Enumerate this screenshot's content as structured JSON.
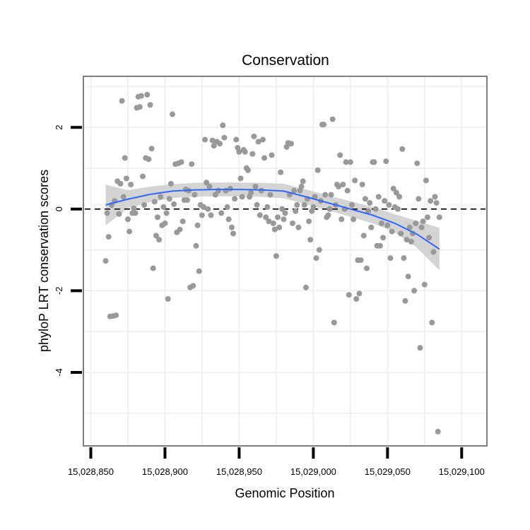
{
  "chart_data": {
    "type": "scatter",
    "title": "Conservation",
    "xlabel": "Genomic Position",
    "ylabel": "phyloP LRT conservation scores",
    "xlim": [
      15028845,
      15029117
    ],
    "ylim": [
      -5.8,
      3.25
    ],
    "x_ticks": [
      15028850,
      15028900,
      15028950,
      15029000,
      15029050,
      15029100
    ],
    "x_tick_labels": [
      "15,028,850",
      "15,028,900",
      "15,028,950",
      "15,029,000",
      "15,029,050",
      "15,029,100"
    ],
    "y_ticks": [
      2,
      0,
      -2,
      -4
    ],
    "y_tick_labels": [
      "2",
      "0",
      "-2",
      "-4"
    ],
    "reference_line": {
      "y": 0,
      "style": "dashed"
    },
    "grid": true,
    "colors": {
      "points": "#999999",
      "smooth_line": "#3366FF",
      "confidence_band": "#cccccc",
      "panel_border": "#7f7f7f",
      "grid": "#f0f0f0"
    },
    "series": [
      {
        "name": "observed scores",
        "points": [
          [
            15028860,
            -1.27
          ],
          [
            15028861,
            -0.1
          ],
          [
            15028862,
            -0.68
          ],
          [
            15028863,
            -2.63
          ],
          [
            15028864,
            0.1
          ],
          [
            15028865,
            -2.62
          ],
          [
            15028866,
            0.2
          ],
          [
            15028867,
            -2.6
          ],
          [
            15028868,
            0.68
          ],
          [
            15028869,
            -0.12
          ],
          [
            15028870,
            0.62
          ],
          [
            15028871,
            2.65
          ],
          [
            15028872,
            0.3
          ],
          [
            15028873,
            1.25
          ],
          [
            15028874,
            0.75
          ],
          [
            15028875,
            -0.25
          ],
          [
            15028876,
            -0.55
          ],
          [
            15028877,
            0.6
          ],
          [
            15028878,
            -0.1
          ],
          [
            15028879,
            0.02
          ],
          [
            15028880,
            -0.1
          ],
          [
            15028881,
            2.48
          ],
          [
            15028882,
            2.75
          ],
          [
            15028883,
            2.5
          ],
          [
            15028884,
            2.77
          ],
          [
            15028885,
            0.8
          ],
          [
            15028886,
            0.1
          ],
          [
            15028887,
            1.25
          ],
          [
            15028888,
            2.8
          ],
          [
            15028889,
            1.22
          ],
          [
            15028890,
            2.55
          ],
          [
            15028891,
            1.48
          ],
          [
            15028892,
            -1.45
          ],
          [
            15028893,
            0.18
          ],
          [
            15028894,
            -0.65
          ],
          [
            15028895,
            -0.2
          ],
          [
            15028896,
            -0.75
          ],
          [
            15028897,
            0.3
          ],
          [
            15028898,
            -0.4
          ],
          [
            15028899,
            0.05
          ],
          [
            15028900,
            -0.35
          ],
          [
            15028901,
            -0.1
          ],
          [
            15028902,
            -2.2
          ],
          [
            15028903,
            0.25
          ],
          [
            15028904,
            0.62
          ],
          [
            15028905,
            2.32
          ],
          [
            15028906,
            0.12
          ],
          [
            15028907,
            1.1
          ],
          [
            15028908,
            -0.57
          ],
          [
            15028909,
            1.12
          ],
          [
            15028910,
            -0.5
          ],
          [
            15028911,
            1.15
          ],
          [
            15028912,
            -0.3
          ],
          [
            15028913,
            0.22
          ],
          [
            15028914,
            0.48
          ],
          [
            15028915,
            0.22
          ],
          [
            15028916,
            0.45
          ],
          [
            15028917,
            -1.92
          ],
          [
            15028918,
            1.1
          ],
          [
            15028919,
            -1.88
          ],
          [
            15028920,
            0.35
          ],
          [
            15028921,
            -0.9
          ],
          [
            15028922,
            -0.4
          ],
          [
            15028923,
            -1.52
          ],
          [
            15028924,
            0.1
          ],
          [
            15028925,
            -0.15
          ],
          [
            15028926,
            0.05
          ],
          [
            15028927,
            1.7
          ],
          [
            15028928,
            0.65
          ],
          [
            15028929,
            0.0
          ],
          [
            15028930,
            0.55
          ],
          [
            15028931,
            -0.15
          ],
          [
            15028932,
            1.68
          ],
          [
            15028933,
            1.55
          ],
          [
            15028934,
            0.35
          ],
          [
            15028935,
            1.65
          ],
          [
            15028936,
            0.45
          ],
          [
            15028937,
            1.6
          ],
          [
            15028938,
            -0.1
          ],
          [
            15028939,
            2.05
          ],
          [
            15028940,
            1.75
          ],
          [
            15028941,
            0.45
          ],
          [
            15028942,
            0.05
          ],
          [
            15028943,
            -0.25
          ],
          [
            15028944,
            0.5
          ],
          [
            15028945,
            -0.45
          ],
          [
            15028946,
            -0.6
          ],
          [
            15028947,
            0.25
          ],
          [
            15028948,
            1.7
          ],
          [
            15028949,
            1.5
          ],
          [
            15028950,
            1.4
          ],
          [
            15028951,
            0.75
          ],
          [
            15028952,
            0.3
          ],
          [
            15028953,
            1.45
          ],
          [
            15028954,
            1.4
          ],
          [
            15028955,
            1.0
          ],
          [
            15028956,
            0.95
          ],
          [
            15028957,
            0.3
          ],
          [
            15028958,
            0.4
          ],
          [
            15028959,
            1.35
          ],
          [
            15028960,
            1.78
          ],
          [
            15028961,
            0.55
          ],
          [
            15028962,
            0.1
          ],
          [
            15028963,
            1.65
          ],
          [
            15028964,
            -0.15
          ],
          [
            15028965,
            0.45
          ],
          [
            15028966,
            1.7
          ],
          [
            15028967,
            1.25
          ],
          [
            15028968,
            -0.2
          ],
          [
            15028969,
            0.05
          ],
          [
            15028970,
            -0.3
          ],
          [
            15028971,
            0.35
          ],
          [
            15028972,
            1.32
          ],
          [
            15028973,
            -0.35
          ],
          [
            15028974,
            -0.5
          ],
          [
            15028975,
            -1.15
          ],
          [
            15028976,
            -0.2
          ],
          [
            15028977,
            -0.45
          ],
          [
            15028978,
            0.9
          ],
          [
            15028979,
            0.0
          ],
          [
            15028980,
            -0.25
          ],
          [
            15028981,
            -0.1
          ],
          [
            15028982,
            1.52
          ],
          [
            15028983,
            1.62
          ],
          [
            15028984,
            0.35
          ],
          [
            15028985,
            1.6
          ],
          [
            15028986,
            -0.35
          ],
          [
            15028987,
            0.45
          ],
          [
            15028988,
            -0.05
          ],
          [
            15028989,
            0.1
          ],
          [
            15028990,
            -0.45
          ],
          [
            15028991,
            0.45
          ],
          [
            15028992,
            0.55
          ],
          [
            15028993,
            0.68
          ],
          [
            15028994,
            0.1
          ],
          [
            15028995,
            -1.92
          ],
          [
            15028996,
            0.25
          ],
          [
            15028997,
            -0.3
          ],
          [
            15028998,
            -0.75
          ],
          [
            15028999,
            -0.05
          ],
          [
            15029000,
            0.05
          ],
          [
            15029001,
            0.3
          ],
          [
            15029002,
            -1.2
          ],
          [
            15029003,
            0.95
          ],
          [
            15029004,
            -1.0
          ],
          [
            15029005,
            0.2
          ],
          [
            15029006,
            2.07
          ],
          [
            15029007,
            2.07
          ],
          [
            15029008,
            0.35
          ],
          [
            15029009,
            -0.2
          ],
          [
            15029010,
            -0.15
          ],
          [
            15029011,
            0.0
          ],
          [
            15029012,
            0.35
          ],
          [
            15029013,
            2.2
          ],
          [
            15029014,
            -2.78
          ],
          [
            15029015,
            0.1
          ],
          [
            15029016,
            0.6
          ],
          [
            15029017,
            0.55
          ],
          [
            15029018,
            1.32
          ],
          [
            15029019,
            -0.25
          ],
          [
            15029020,
            0.6
          ],
          [
            15029021,
            0.0
          ],
          [
            15029022,
            1.15
          ],
          [
            15029023,
            0.45
          ],
          [
            15029024,
            -2.1
          ],
          [
            15029025,
            1.15
          ],
          [
            15029026,
            0.1
          ],
          [
            15029027,
            -0.25
          ],
          [
            15029028,
            0.7
          ],
          [
            15029029,
            -2.2
          ],
          [
            15029030,
            -1.25
          ],
          [
            15029031,
            -2.07
          ],
          [
            15029032,
            -1.25
          ],
          [
            15029033,
            0.6
          ],
          [
            15029034,
            -0.65
          ],
          [
            15029035,
            0.25
          ],
          [
            15029036,
            -1.45
          ],
          [
            15029037,
            -0.05
          ],
          [
            15029038,
            0.15
          ],
          [
            15029039,
            -0.45
          ],
          [
            15029040,
            1.15
          ],
          [
            15029041,
            1.15
          ],
          [
            15029042,
            0.0
          ],
          [
            15029043,
            -0.9
          ],
          [
            15029044,
            0.3
          ],
          [
            15029045,
            -0.9
          ],
          [
            15029046,
            -0.35
          ],
          [
            15029047,
            -0.7
          ],
          [
            15029048,
            0.2
          ],
          [
            15029049,
            1.17
          ],
          [
            15029050,
            -0.4
          ],
          [
            15029051,
            0.1
          ],
          [
            15029052,
            -1.2
          ],
          [
            15029053,
            -0.55
          ],
          [
            15029054,
            0.5
          ],
          [
            15029055,
            0.05
          ],
          [
            15029056,
            0.4
          ],
          [
            15029057,
            0.0
          ],
          [
            15029058,
            0.3
          ],
          [
            15029059,
            -0.6
          ],
          [
            15029060,
            1.47
          ],
          [
            15029061,
            -1.2
          ],
          [
            15029062,
            -2.25
          ],
          [
            15029063,
            -0.75
          ],
          [
            15029064,
            -1.65
          ],
          [
            15029065,
            -0.45
          ],
          [
            15029066,
            -0.8
          ],
          [
            15029067,
            -0.6
          ],
          [
            15029068,
            -2.0
          ],
          [
            15029069,
            -0.35
          ],
          [
            15029070,
            1.12
          ],
          [
            15029071,
            0.25
          ],
          [
            15029072,
            -3.4
          ],
          [
            15029073,
            -0.45
          ],
          [
            15029074,
            -0.3
          ],
          [
            15029075,
            -1.85
          ],
          [
            15029076,
            0.7
          ],
          [
            15029077,
            -0.2
          ],
          [
            15029078,
            -0.7
          ],
          [
            15029079,
            0.2
          ],
          [
            15029080,
            -2.78
          ],
          [
            15029081,
            -1.05
          ],
          [
            15029082,
            0.3
          ],
          [
            15029083,
            0.15
          ],
          [
            15029084,
            -5.45
          ],
          [
            15029085,
            -0.2
          ]
        ]
      },
      {
        "name": "smoothed fit",
        "x": [
          15028860,
          15028875,
          15028890,
          15028905,
          15028920,
          15028935,
          15028950,
          15028965,
          15028980,
          15028995,
          15029010,
          15029025,
          15029040,
          15029055,
          15029070,
          15029085
        ],
        "y": [
          0.1,
          0.24,
          0.36,
          0.44,
          0.47,
          0.48,
          0.48,
          0.47,
          0.44,
          0.3,
          0.15,
          0.0,
          -0.15,
          -0.35,
          -0.62,
          -0.98
        ],
        "ci_low": [
          -0.4,
          0.02,
          0.17,
          0.27,
          0.3,
          0.31,
          0.31,
          0.3,
          0.26,
          0.12,
          -0.03,
          -0.19,
          -0.35,
          -0.57,
          -0.95,
          -1.5
        ],
        "ci_high": [
          0.6,
          0.46,
          0.55,
          0.61,
          0.64,
          0.65,
          0.65,
          0.64,
          0.62,
          0.48,
          0.33,
          0.19,
          0.05,
          -0.13,
          -0.29,
          -0.46
        ]
      }
    ]
  }
}
